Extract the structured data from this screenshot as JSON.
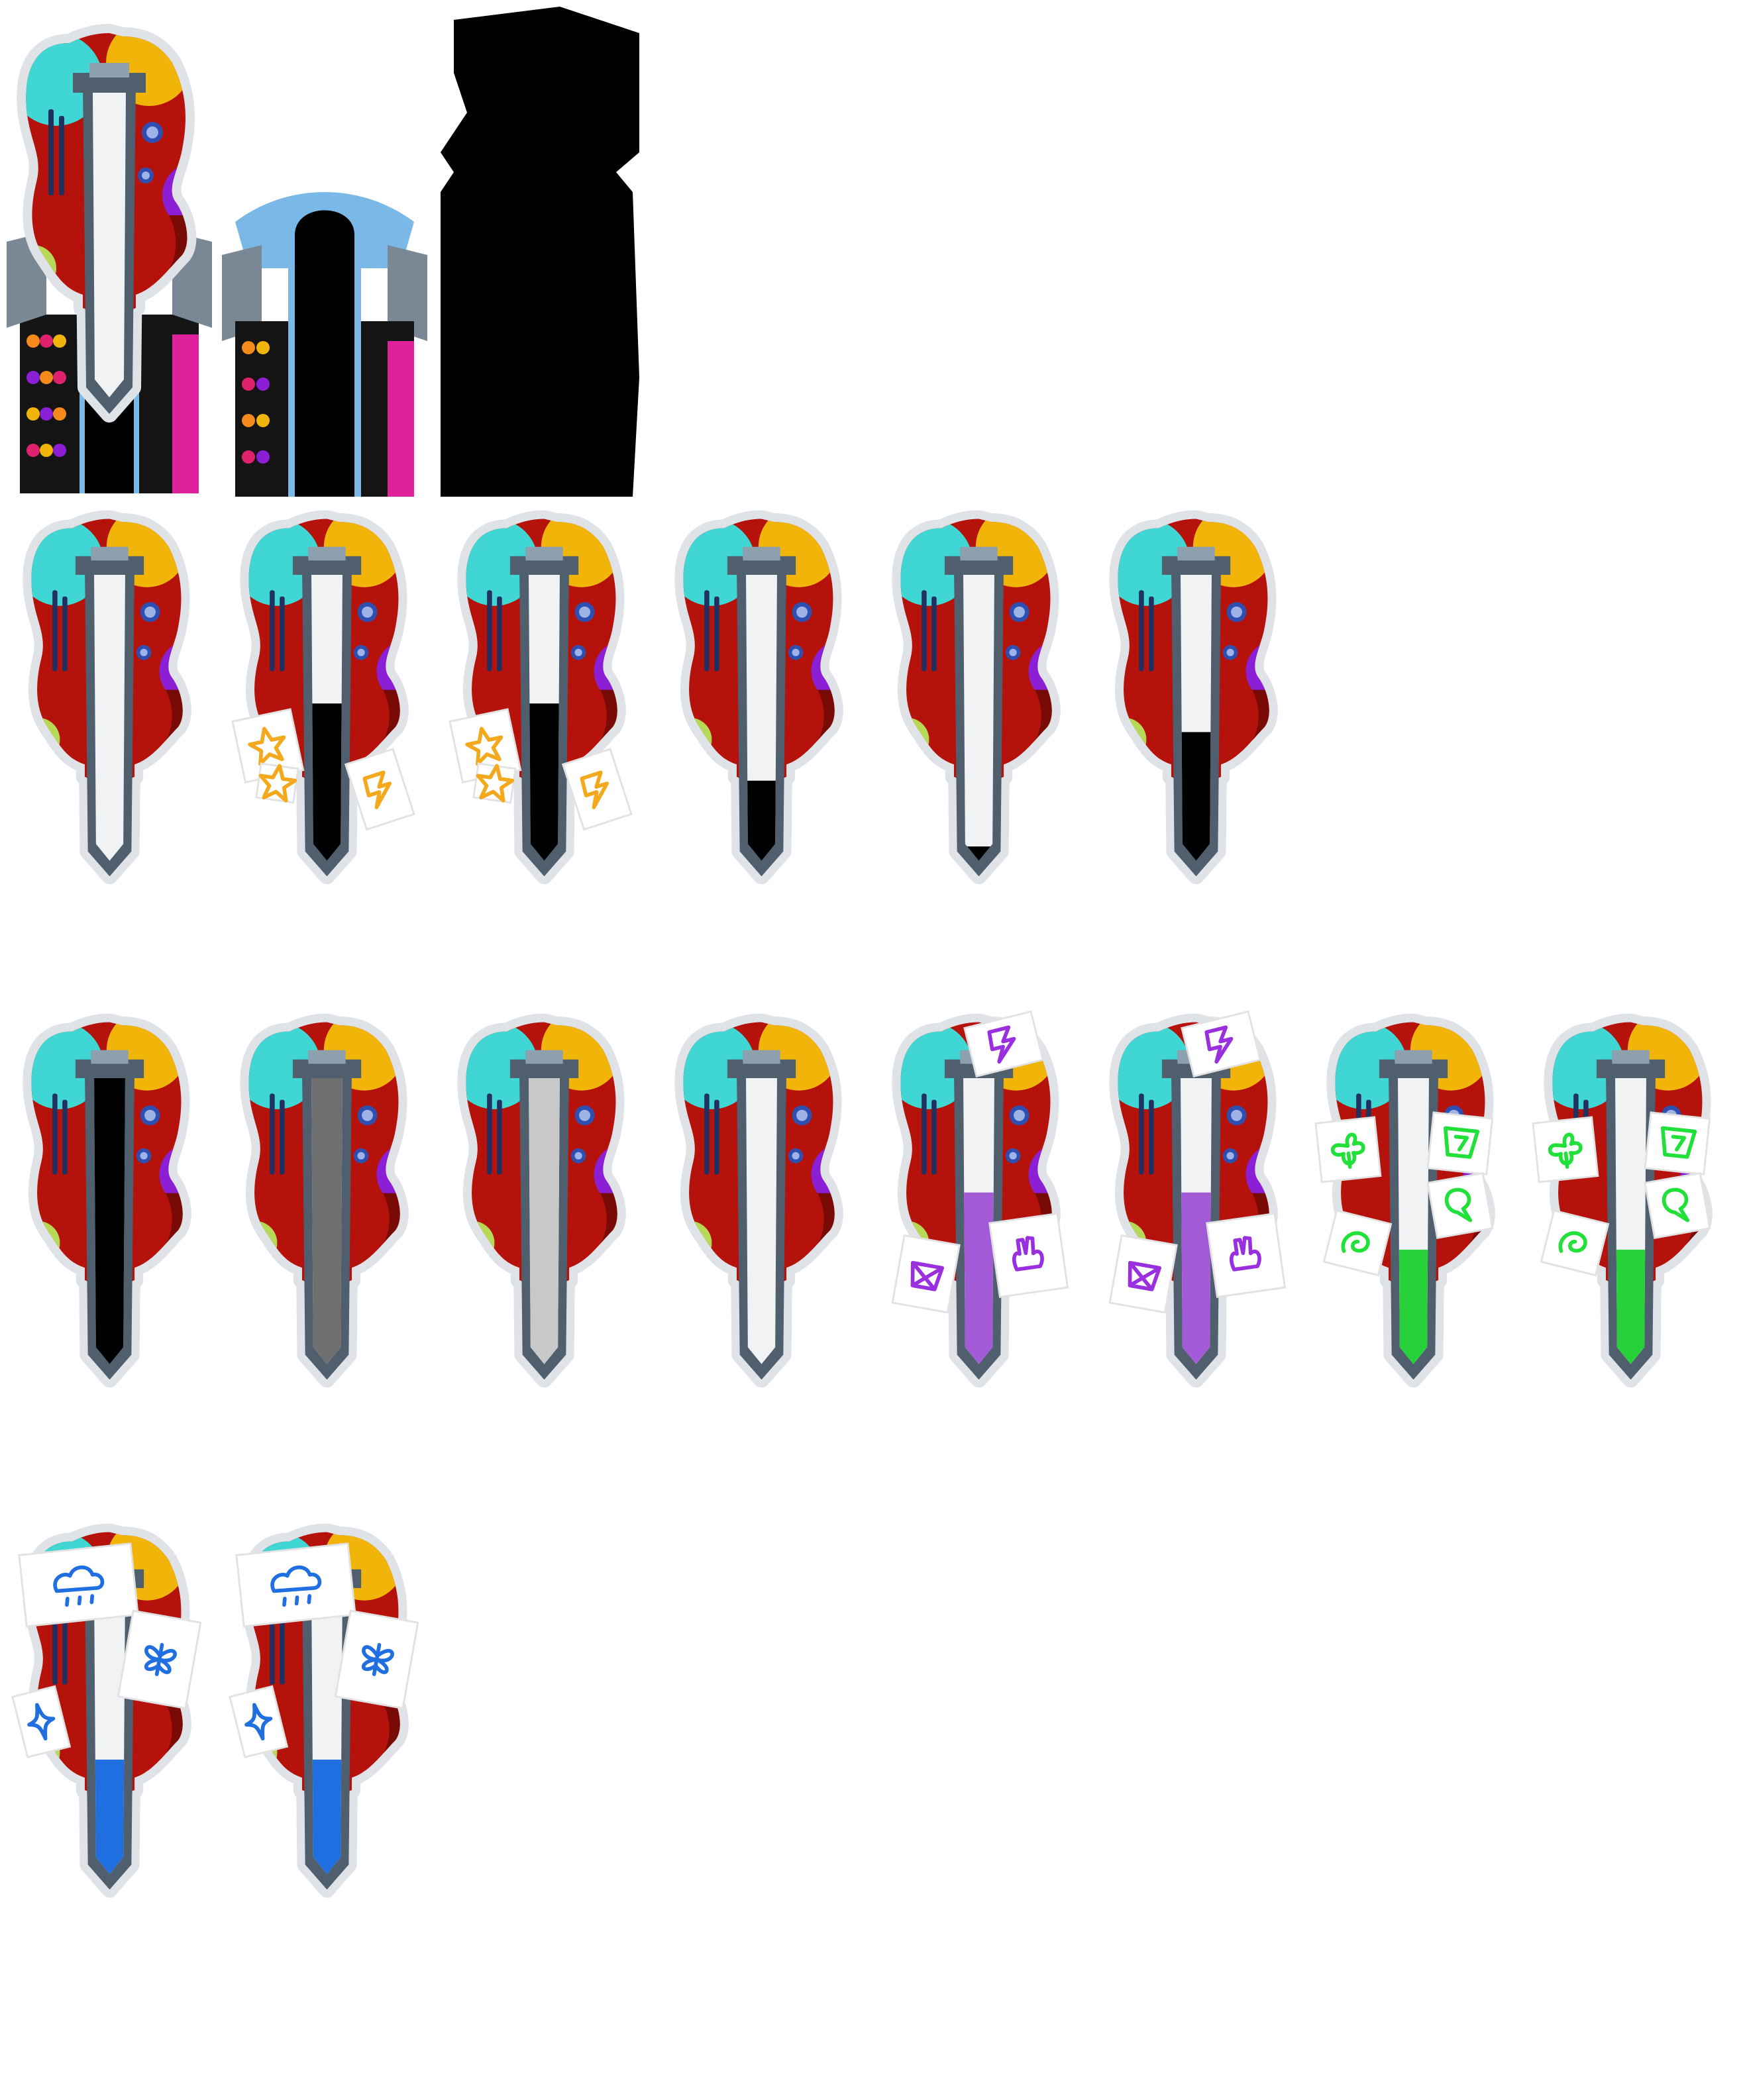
{
  "palette": {
    "body_red": "#b5120b",
    "body_dark": "#7a0a06",
    "cyan": "#3fd6d3",
    "yellow": "#f1b509",
    "purple": "#8a1fd6",
    "lime": "#b7d957",
    "steel": "#4f5f6e",
    "steel_light": "#8e9fae",
    "paper": "#f1f2f4",
    "outline": "#dfe3e8",
    "knob": "#2f4fb0",
    "knob_light": "#9fb4e6"
  },
  "header_sprites": [
    {
      "kind": "guitar-with-dock",
      "name": "guitar-dock-sprite"
    },
    {
      "kind": "dock-empty",
      "name": "dock-empty-sprite"
    },
    {
      "kind": "silhouette-mask",
      "name": "silhouette-mask-sprite",
      "color": "#000000"
    }
  ],
  "rows": [
    {
      "name": "row-black-fill",
      "sprites": [
        {
          "fill_level": 0.0,
          "fill_color": "#000000",
          "stickers": "none"
        },
        {
          "fill_level": 0.55,
          "fill_color": "#000000",
          "stickers": "orange"
        },
        {
          "fill_level": 0.55,
          "fill_color": "#000000",
          "stickers": "orange"
        },
        {
          "fill_level": 0.28,
          "fill_color": "#000000",
          "stickers": "none"
        },
        {
          "fill_level": 0.05,
          "fill_color": "#000000",
          "stickers": "none"
        },
        {
          "fill_level": 0.45,
          "fill_color": "#000000",
          "stickers": "none"
        }
      ]
    },
    {
      "name": "row-variants",
      "sprites": [
        {
          "fill_level": 1.0,
          "fill_color": "#000000",
          "stickers": "none"
        },
        {
          "fill_level": 1.0,
          "fill_color": "#6f6f6f",
          "stickers": "none"
        },
        {
          "fill_level": 1.0,
          "fill_color": "#c8c8c8",
          "stickers": "none"
        },
        {
          "fill_level": 0.0,
          "fill_color": "#000000",
          "stickers": "none"
        },
        {
          "fill_level": 0.6,
          "fill_color": "#a35ad6",
          "stickers": "purple"
        },
        {
          "fill_level": 0.6,
          "fill_color": "#a35ad6",
          "stickers": "purple"
        },
        {
          "fill_level": 0.4,
          "fill_color": "#26d13a",
          "stickers": "green"
        },
        {
          "fill_level": 0.4,
          "fill_color": "#26d13a",
          "stickers": "green"
        }
      ]
    },
    {
      "name": "row-blue-fill",
      "sprites": [
        {
          "fill_level": 0.4,
          "fill_color": "#1f6fe0",
          "stickers": "blue"
        },
        {
          "fill_level": 0.4,
          "fill_color": "#1f6fe0",
          "stickers": "blue"
        }
      ]
    }
  ],
  "sticker_colors": {
    "orange": "#f4a81c",
    "purple": "#9a2fe0",
    "green": "#22e03a",
    "blue": "#1f6fe0"
  }
}
